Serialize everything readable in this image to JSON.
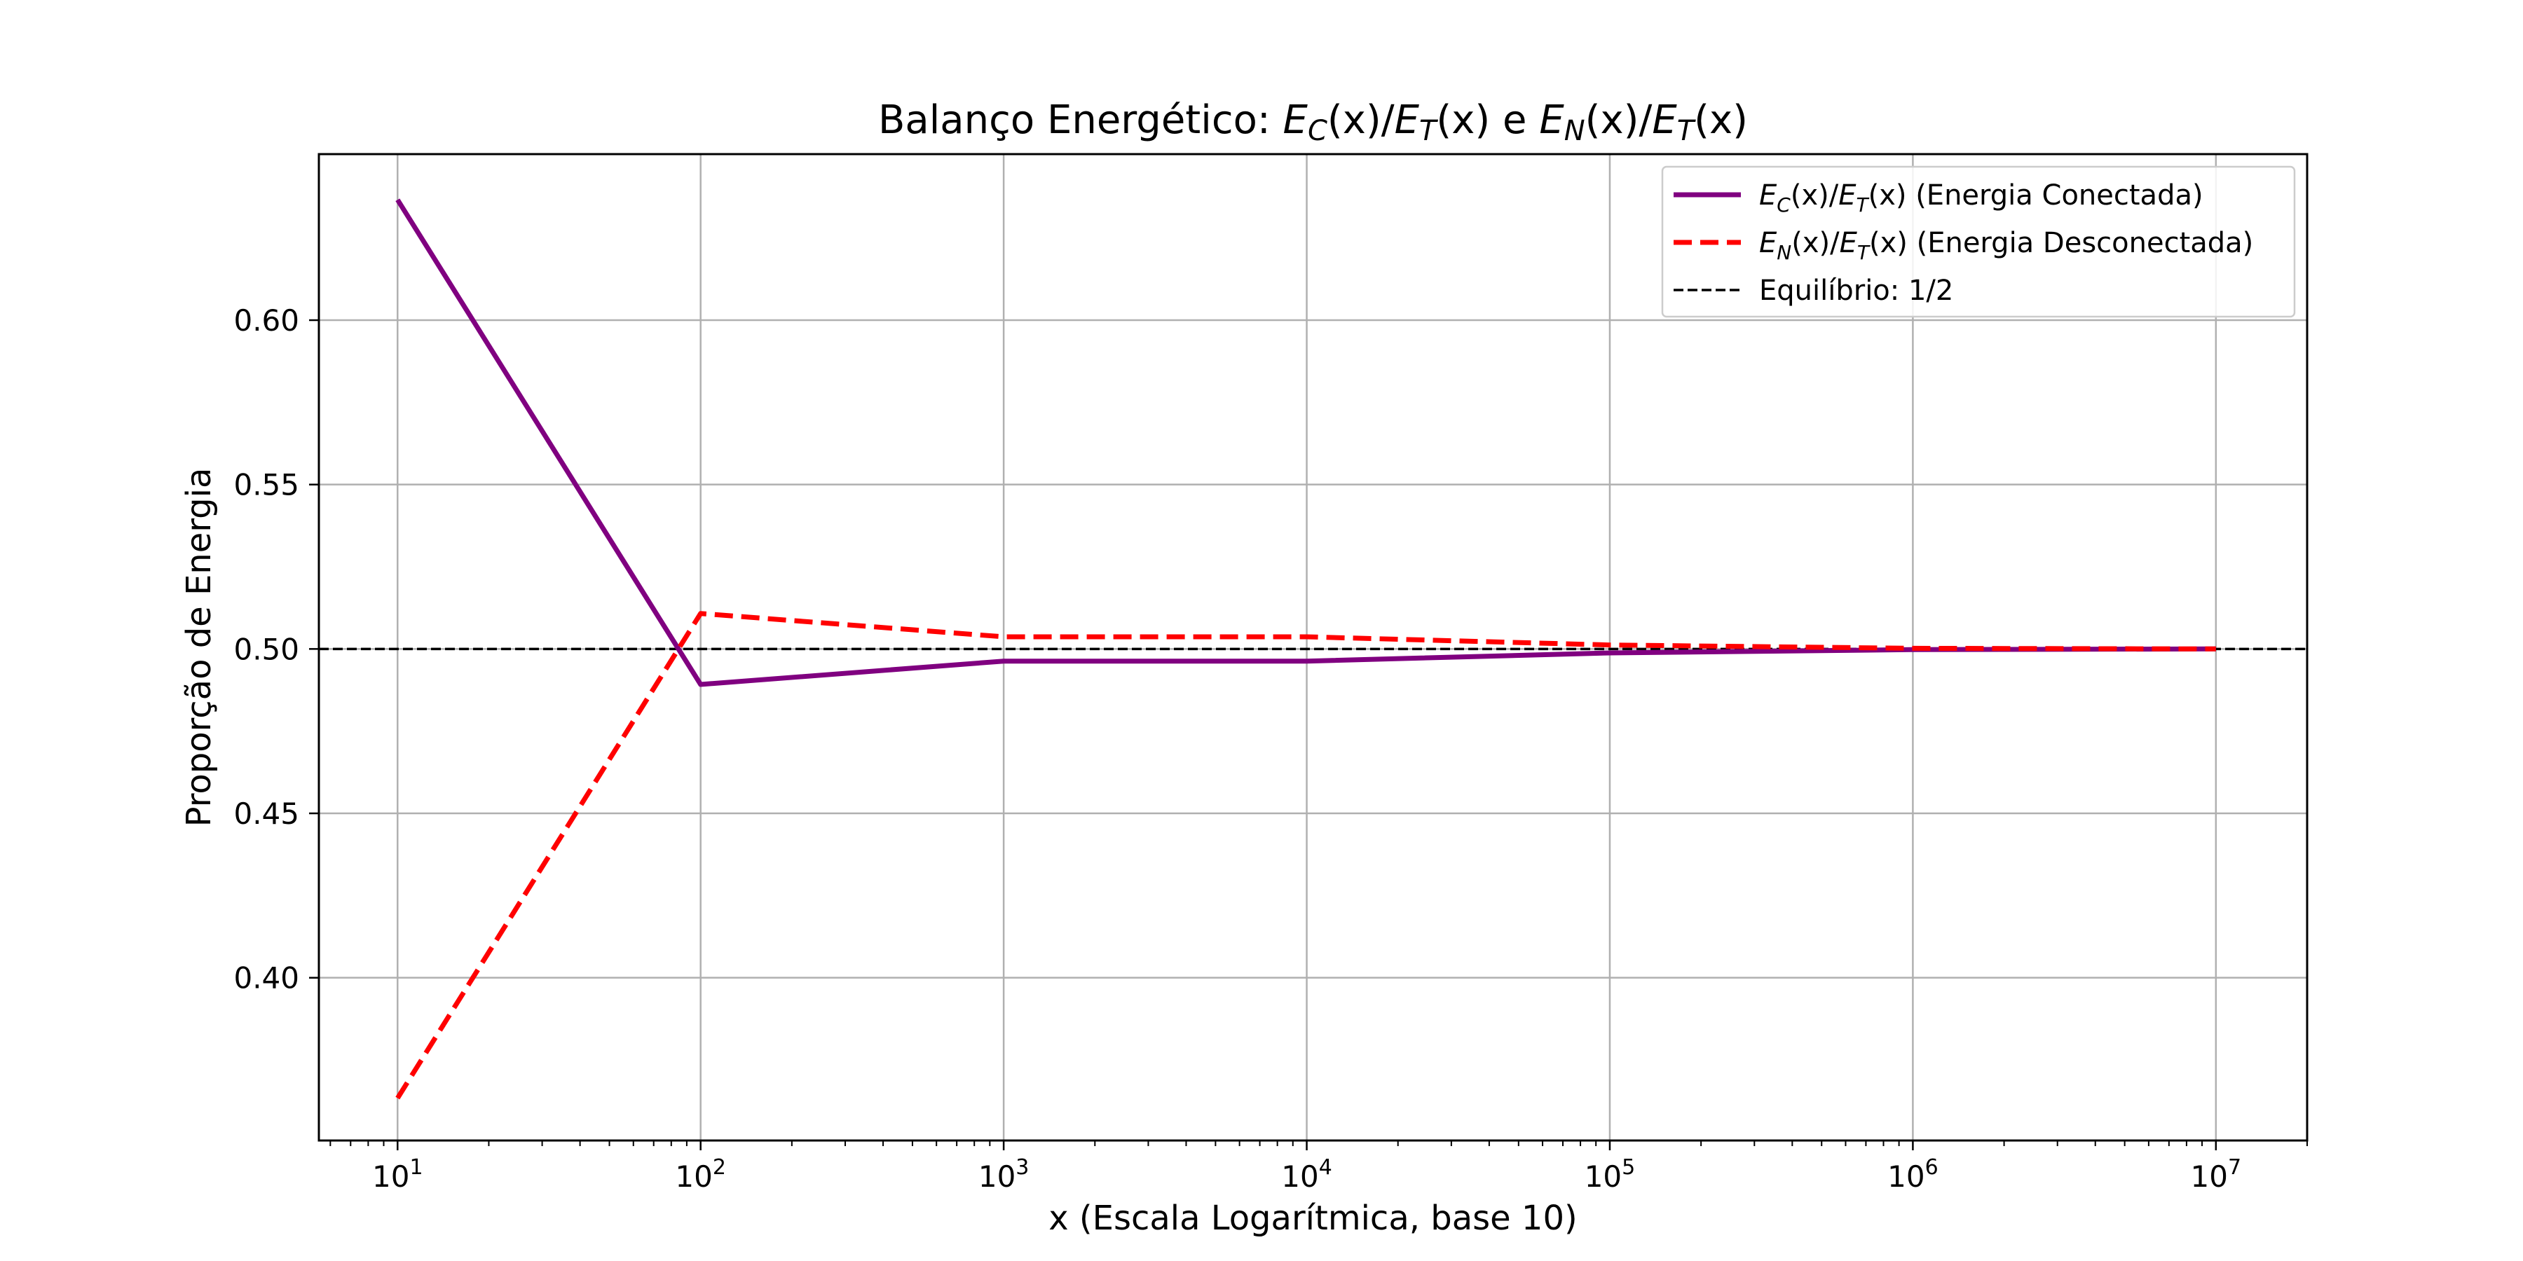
{
  "chart_data": {
    "type": "line",
    "title": {
      "prefix": "Balanço Energético: ",
      "expr1": {
        "a": "E",
        "a_sub": "C",
        "a_arg": "(x)/",
        "b": "E",
        "b_sub": "T",
        "b_arg": "(x)"
      },
      "joiner": " e ",
      "expr2": {
        "a": "E",
        "a_sub": "N",
        "a_arg": "(x)/",
        "b": "E",
        "b_sub": "T",
        "b_arg": "(x)"
      }
    },
    "xlabel": "x (Escala Logarítmica, base 10)",
    "ylabel": "Proporção de Energia",
    "xscale": "log",
    "xlim": [
      5.5,
      20000000
    ],
    "ylim": [
      0.3505,
      0.6505
    ],
    "grid": true,
    "legend_position": "top-right",
    "x_ticks": [
      {
        "value": 10,
        "base": "10",
        "exp": "1"
      },
      {
        "value": 100,
        "base": "10",
        "exp": "2"
      },
      {
        "value": 1000,
        "base": "10",
        "exp": "3"
      },
      {
        "value": 10000,
        "base": "10",
        "exp": "4"
      },
      {
        "value": 100000,
        "base": "10",
        "exp": "5"
      },
      {
        "value": 1000000,
        "base": "10",
        "exp": "6"
      },
      {
        "value": 10000000,
        "base": "10",
        "exp": "7"
      }
    ],
    "y_ticks": [
      {
        "value": 0.4,
        "label": "0.40"
      },
      {
        "value": 0.45,
        "label": "0.45"
      },
      {
        "value": 0.5,
        "label": "0.50"
      },
      {
        "value": 0.55,
        "label": "0.55"
      },
      {
        "value": 0.6,
        "label": "0.60"
      }
    ],
    "x": [
      10,
      100,
      1000,
      10000,
      100000,
      1000000,
      10000000
    ],
    "series": [
      {
        "key": "ec",
        "label": {
          "a": "E",
          "a_sub": "C",
          "a_arg": "(x)/",
          "b": "E",
          "b_sub": "T",
          "b_arg": "(x)",
          "suffix": " (Energia Conectada)"
        },
        "color": "#800080",
        "dash": "solid",
        "values": [
          0.6366,
          0.4892,
          0.4963,
          0.4963,
          0.4988,
          0.4998,
          0.5
        ]
      },
      {
        "key": "en",
        "label": {
          "a": "E",
          "a_sub": "N",
          "a_arg": "(x)/",
          "b": "E",
          "b_sub": "T",
          "b_arg": "(x)",
          "suffix": " (Energia Desconectada)"
        },
        "color": "#ff0000",
        "dash": "dashed",
        "values": [
          0.3634,
          0.5108,
          0.5037,
          0.5037,
          0.5012,
          0.5002,
          0.5
        ]
      }
    ],
    "reference_line": {
      "y": 0.5,
      "label": "Equilíbrio: 1/2",
      "color": "#000000",
      "dash": "dashed"
    }
  }
}
